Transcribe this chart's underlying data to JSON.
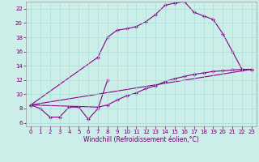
{
  "xlabel": "Windchill (Refroidissement éolien,°C)",
  "background_color": "#cceee8",
  "grid_color": "#aadddd",
  "line_color": "#880088",
  "xlim": [
    -0.5,
    23.5
  ],
  "ylim": [
    5.5,
    23.0
  ],
  "xticks": [
    0,
    1,
    2,
    3,
    4,
    5,
    6,
    7,
    8,
    9,
    10,
    11,
    12,
    13,
    14,
    15,
    16,
    17,
    18,
    19,
    20,
    21,
    22,
    23
  ],
  "yticks": [
    6,
    8,
    10,
    12,
    14,
    16,
    18,
    20,
    22
  ],
  "line1_x": [
    0,
    1,
    2,
    3,
    4,
    5,
    6,
    7,
    8
  ],
  "line1_y": [
    8.5,
    8.0,
    6.8,
    6.8,
    8.2,
    8.2,
    6.5,
    8.0,
    12.0
  ],
  "line2_x": [
    0,
    7,
    8,
    9,
    10,
    11,
    12,
    13,
    14,
    15,
    16,
    17,
    18,
    19,
    20,
    21,
    22,
    23
  ],
  "line2_y": [
    8.5,
    15.2,
    18.0,
    19.0,
    19.2,
    19.5,
    20.2,
    21.2,
    22.5,
    22.8,
    23.0,
    21.5,
    21.0,
    20.5,
    18.5,
    16.0,
    13.5,
    13.5
  ],
  "line3_x": [
    0,
    23
  ],
  "line3_y": [
    8.5,
    13.5
  ],
  "line4_x": [
    0,
    7,
    8,
    9,
    10,
    11,
    12,
    13,
    14,
    15,
    16,
    17,
    18,
    19,
    20,
    21,
    22,
    23
  ],
  "line4_y": [
    8.5,
    8.2,
    8.5,
    9.2,
    9.8,
    10.2,
    10.8,
    11.2,
    11.8,
    12.2,
    12.5,
    12.8,
    13.0,
    13.2,
    13.3,
    13.4,
    13.5,
    13.5
  ],
  "tick_fontsize": 5,
  "xlabel_fontsize": 5.5,
  "tick_color": "#660066",
  "marker": "+",
  "markersize": 3,
  "linewidth": 0.8
}
